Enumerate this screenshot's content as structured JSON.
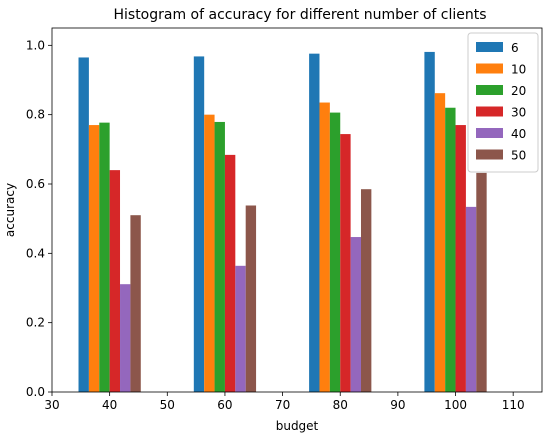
{
  "chart_data": {
    "type": "bar",
    "title": "Histogram of accuracy for different number of clients",
    "xlabel": "budget",
    "ylabel": "accuracy",
    "x": [
      40,
      60,
      80,
      100
    ],
    "xlim": [
      30,
      115
    ],
    "ylim": [
      0,
      1.05
    ],
    "xticks": [
      30,
      40,
      50,
      60,
      70,
      80,
      90,
      100,
      110
    ],
    "yticks": [
      0.0,
      0.2,
      0.4,
      0.6,
      0.8,
      1.0
    ],
    "xtick_labels": [
      "30",
      "40",
      "50",
      "60",
      "70",
      "80",
      "90",
      "100",
      "110"
    ],
    "ytick_labels": [
      "0.0",
      "0.2",
      "0.4",
      "0.6",
      "0.8",
      "1.0"
    ],
    "bar_width": 1.8,
    "grid": false,
    "legend_position": "top-right",
    "series": [
      {
        "name": "6",
        "color": "#1f77b4",
        "values": [
          0.965,
          0.968,
          0.976,
          0.981
        ]
      },
      {
        "name": "10",
        "color": "#ff7f0e",
        "values": [
          0.77,
          0.8,
          0.835,
          0.862
        ]
      },
      {
        "name": "20",
        "color": "#2ca02c",
        "values": [
          0.777,
          0.779,
          0.806,
          0.82
        ]
      },
      {
        "name": "30",
        "color": "#d62728",
        "values": [
          0.64,
          0.684,
          0.744,
          0.77
        ]
      },
      {
        "name": "40",
        "color": "#9467bd",
        "values": [
          0.311,
          0.364,
          0.447,
          0.534
        ]
      },
      {
        "name": "50",
        "color": "#8c564b",
        "values": [
          0.51,
          0.538,
          0.585,
          0.632
        ]
      }
    ]
  }
}
